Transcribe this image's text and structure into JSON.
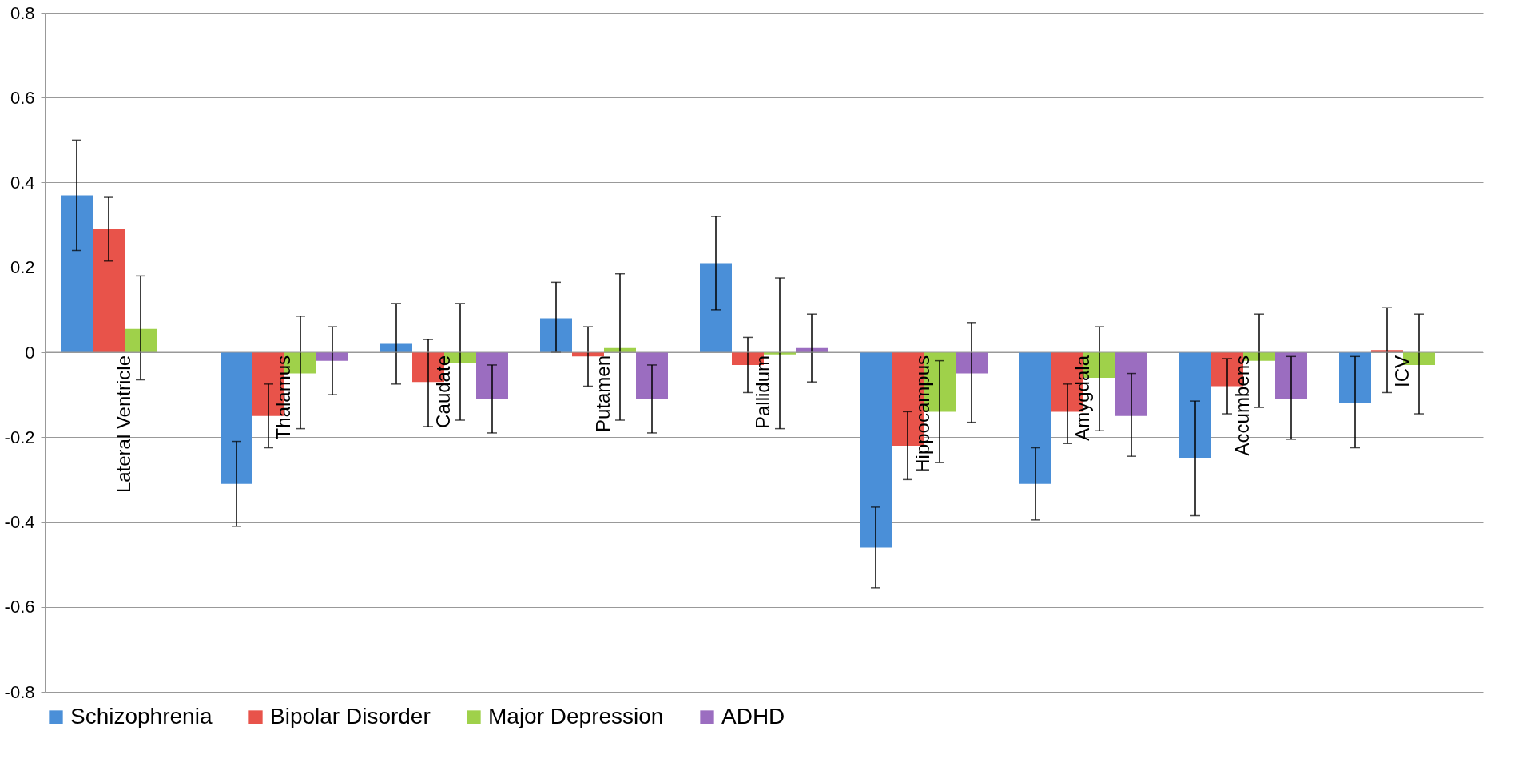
{
  "chart_data": {
    "type": "bar",
    "categories": [
      "Lateral Ventricle",
      "Thalamus",
      "Caudate",
      "Putamen",
      "Pallidum",
      "Hippocampus",
      "Amygdala",
      "Accumbens",
      "ICV"
    ],
    "series": [
      {
        "name": "Schizophrenia",
        "color": "#4a8fd8",
        "values": [
          0.37,
          -0.31,
          0.02,
          0.08,
          0.21,
          -0.46,
          -0.31,
          -0.25,
          -0.12
        ],
        "errors": [
          [
            0.24,
            0.5
          ],
          [
            -0.41,
            -0.21
          ],
          [
            -0.075,
            0.115
          ],
          [
            0.0,
            0.165
          ],
          [
            0.1,
            0.32
          ],
          [
            -0.555,
            -0.365
          ],
          [
            -0.395,
            -0.225
          ],
          [
            -0.385,
            -0.115
          ],
          [
            -0.225,
            -0.01
          ]
        ]
      },
      {
        "name": "Bipolar Disorder",
        "color": "#e8534a",
        "values": [
          0.29,
          -0.15,
          -0.07,
          -0.01,
          -0.03,
          -0.22,
          -0.14,
          -0.08,
          0.005
        ],
        "errors": [
          [
            0.215,
            0.365
          ],
          [
            -0.225,
            -0.075
          ],
          [
            -0.175,
            0.03
          ],
          [
            -0.08,
            0.06
          ],
          [
            -0.095,
            0.035
          ],
          [
            -0.3,
            -0.14
          ],
          [
            -0.215,
            -0.075
          ],
          [
            -0.145,
            -0.015
          ],
          [
            -0.095,
            0.105
          ]
        ]
      },
      {
        "name": "Major Depression",
        "color": "#9fd14a",
        "values": [
          0.055,
          -0.05,
          -0.025,
          0.01,
          -0.005,
          -0.14,
          -0.06,
          -0.02,
          -0.03
        ],
        "errors": [
          [
            -0.065,
            0.18
          ],
          [
            -0.18,
            0.085
          ],
          [
            -0.16,
            0.115
          ],
          [
            -0.16,
            0.185
          ],
          [
            -0.18,
            0.175
          ],
          [
            -0.26,
            -0.02
          ],
          [
            -0.185,
            0.06
          ],
          [
            -0.13,
            0.09
          ],
          [
            -0.145,
            0.09
          ]
        ]
      },
      {
        "name": "ADHD",
        "color": "#9b6dc0",
        "values": [
          0.0,
          -0.02,
          -0.11,
          -0.11,
          0.01,
          -0.05,
          -0.15,
          -0.11,
          0.0
        ],
        "errors": [
          null,
          [
            -0.1,
            0.06
          ],
          [
            -0.19,
            -0.03
          ],
          [
            -0.19,
            -0.03
          ],
          [
            -0.07,
            0.09
          ],
          [
            -0.165,
            0.07
          ],
          [
            -0.245,
            -0.05
          ],
          [
            -0.205,
            -0.01
          ],
          null
        ]
      }
    ],
    "ylim": [
      -0.8,
      0.8
    ],
    "yticks": [
      {
        "value": -0.8,
        "label": "-0.8"
      },
      {
        "value": -0.6,
        "label": "-0.6"
      },
      {
        "value": -0.4,
        "label": "-0.4"
      },
      {
        "value": -0.2,
        "label": "-0.2"
      },
      0,
      0.2,
      0.4,
      0.6,
      0.8
    ],
    "grid": "y",
    "legend": "bottom"
  }
}
